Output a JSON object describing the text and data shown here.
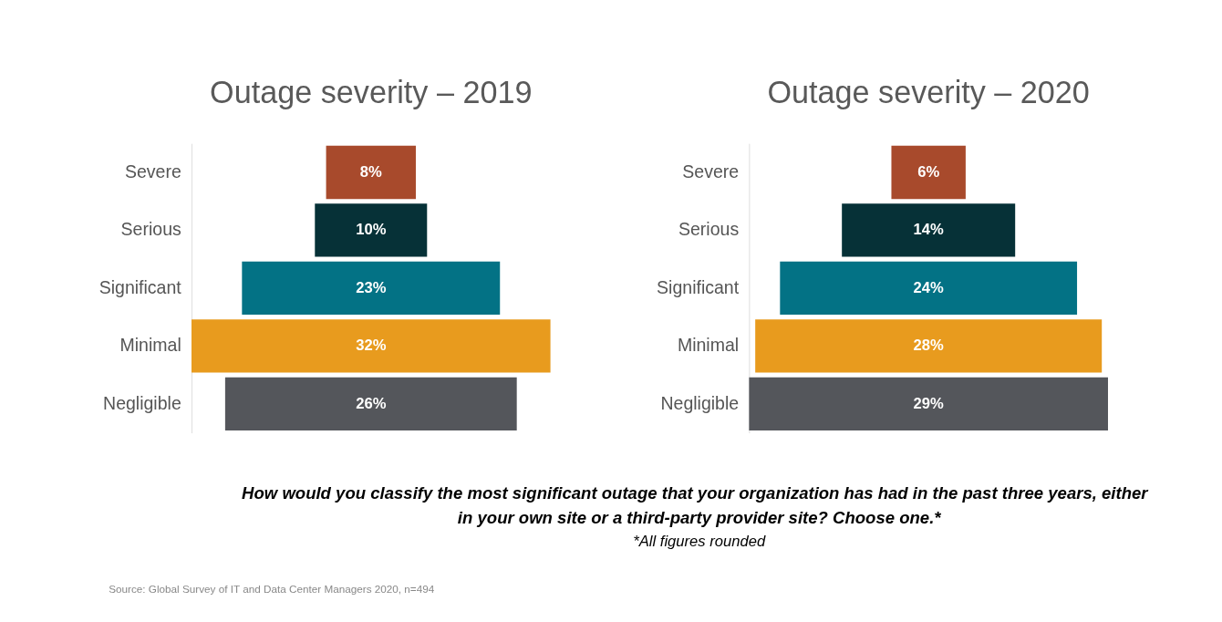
{
  "chart_data": [
    {
      "type": "other",
      "title": "Outage severity – 2019",
      "categories": [
        "Severe",
        "Serious",
        "Significant",
        "Minimal",
        "Negligible"
      ],
      "values": [
        8,
        10,
        23,
        32,
        26
      ],
      "colors": [
        "#a84a2c",
        "#063137",
        "#037285",
        "#e89b1e",
        "#54565b"
      ],
      "value_labels": [
        "8%",
        "10%",
        "23%",
        "32%",
        "26%"
      ]
    },
    {
      "type": "other",
      "title": "Outage severity – 2020",
      "categories": [
        "Severe",
        "Serious",
        "Significant",
        "Minimal",
        "Negligible"
      ],
      "values": [
        6,
        14,
        24,
        28,
        29
      ],
      "colors": [
        "#a84a2c",
        "#063137",
        "#037285",
        "#e89b1e",
        "#54565b"
      ],
      "value_labels": [
        "6%",
        "14%",
        "24%",
        "28%",
        "29%"
      ],
      "annotations": [
        "How would you classify the most significant outage that your organization has had in the past three years, either",
        "in your own site or a third-party provider site? Choose one.*",
        "*All figures rounded",
        "Source: Global Survey of IT and Data Center Managers 2020, n=494"
      ]
    }
  ]
}
